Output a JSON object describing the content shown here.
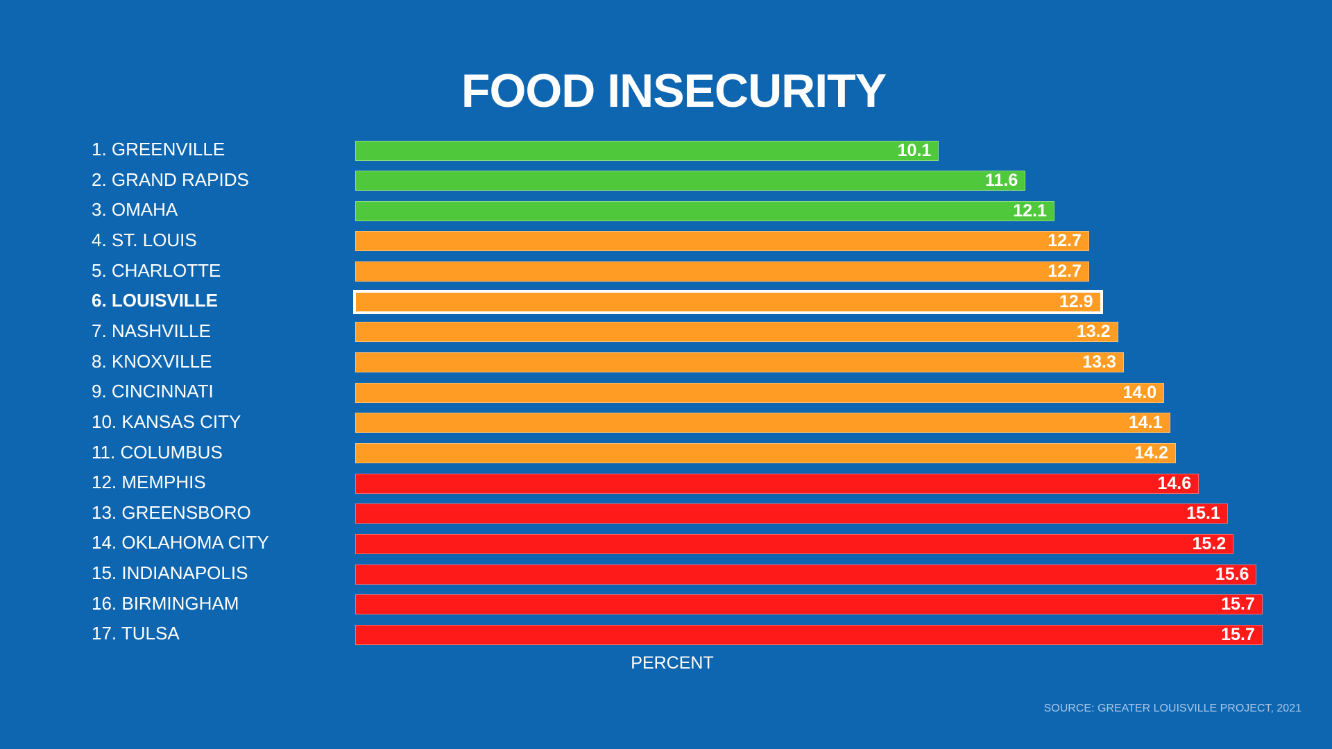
{
  "chart_data": {
    "type": "bar",
    "orientation": "horizontal",
    "title": "FOOD INSECURITY",
    "xlabel": "PERCENT",
    "source": "SOURCE: GREATER LOUISVILLE PROJECT, 2021",
    "categories": [
      "1. GREENVILLE",
      "2. GRAND RAPIDS",
      "3. OMAHA",
      "4. ST. LOUIS",
      "5. CHARLOTTE",
      "6. LOUISVILLE",
      "7. NASHVILLE",
      "8. KNOXVILLE",
      "9. CINCINNATI",
      "10. KANSAS CITY",
      "11. COLUMBUS",
      "12. MEMPHIS",
      "13. GREENSBORO",
      "14. OKLAHOMA CITY",
      "15. INDIANAPOLIS",
      "16. BIRMINGHAM",
      "17. TULSA"
    ],
    "values": [
      10.1,
      11.6,
      12.1,
      12.7,
      12.7,
      12.9,
      13.2,
      13.3,
      14.0,
      14.1,
      14.2,
      14.6,
      15.1,
      15.2,
      15.6,
      15.7,
      15.7
    ],
    "value_labels": [
      "10.1",
      "11.6",
      "12.1",
      "12.7",
      "12.7",
      "12.9",
      "13.2",
      "13.3",
      "14.0",
      "14.1",
      "14.2",
      "14.6",
      "15.1",
      "15.2",
      "15.6",
      "15.7",
      "15.7"
    ],
    "tiers": [
      "green",
      "green",
      "green",
      "orange",
      "orange",
      "orange",
      "orange",
      "orange",
      "orange",
      "orange",
      "orange",
      "red",
      "red",
      "red",
      "red",
      "red",
      "red"
    ],
    "highlight": "6. LOUISVILLE",
    "xlim": [
      0,
      15.7
    ],
    "grid": false,
    "colors": {
      "background": "#0f66b0",
      "green": "#50c83c",
      "orange": "#ff9c24",
      "red": "#ff1a1a",
      "highlight_border": "#ffffff"
    }
  }
}
